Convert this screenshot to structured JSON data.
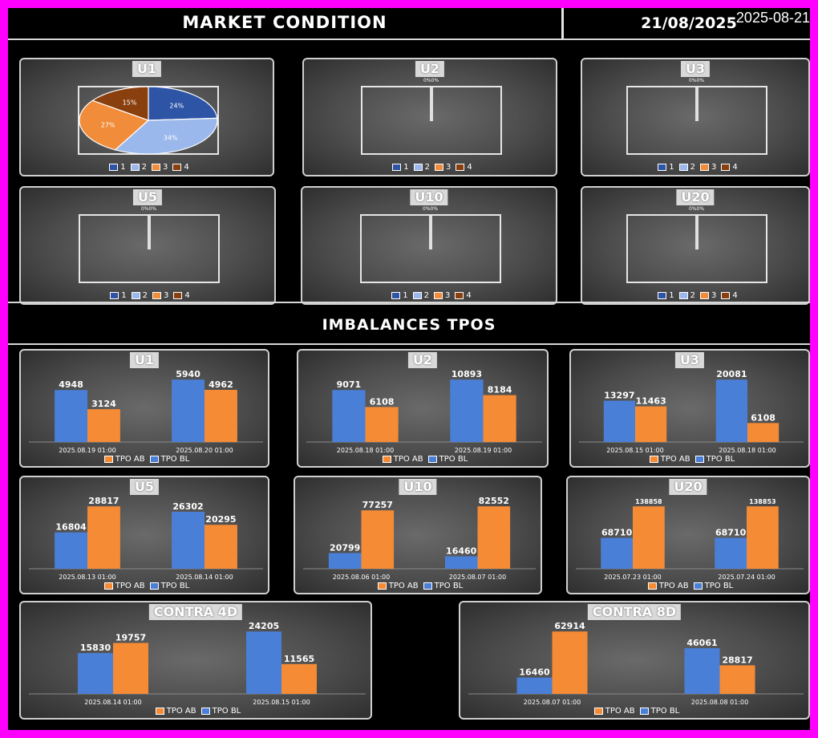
{
  "overlay_date": "2025-08-21",
  "header": {
    "title": "MARKET CONDITION",
    "date": "21/08/2025"
  },
  "imbalance_title": "IMBALANCES TPOS",
  "colors": {
    "q1": "#2e55a5",
    "q2": "#9ab8ec",
    "q3": "#f08c3a",
    "q4": "#8a3f0e",
    "tpo_ab": "#f58b35",
    "tpo_bl": "#4a7fd8"
  },
  "pie_legend": [
    "1",
    "2",
    "3",
    "4"
  ],
  "pies": [
    {
      "label": "U1",
      "values": [
        24,
        34,
        27,
        15
      ],
      "slice_labels": [
        "24%",
        "34%",
        "27%",
        "15%"
      ]
    },
    {
      "label": "U2",
      "mini": "0%0%"
    },
    {
      "label": "U3",
      "mini": "0%0%"
    },
    {
      "label": "U5",
      "mini": "0%0%"
    },
    {
      "label": "U10",
      "mini": "0%0%"
    },
    {
      "label": "U20",
      "mini": "0%0%"
    }
  ],
  "bar_legend": [
    "TPO AB",
    "TPO BL"
  ],
  "chart_data": [
    {
      "type": "bar",
      "title": "U1",
      "categories": [
        "2025.08.19 01:00",
        "2025.08.20 01:00"
      ],
      "series": [
        {
          "name": "TPO BL",
          "values": [
            4948,
            5940
          ]
        },
        {
          "name": "TPO AB",
          "values": [
            3124,
            4962
          ]
        }
      ]
    },
    {
      "type": "bar",
      "title": "U2",
      "categories": [
        "2025.08.18 01:00",
        "2025.08.19 01:00"
      ],
      "series": [
        {
          "name": "TPO BL",
          "values": [
            9071,
            10893
          ]
        },
        {
          "name": "TPO AB",
          "values": [
            6108,
            8184
          ]
        }
      ]
    },
    {
      "type": "bar",
      "title": "U3",
      "categories": [
        "2025.08.15 01:00",
        "2025.08.18 01:00"
      ],
      "series": [
        {
          "name": "TPO BL",
          "values": [
            13297,
            20081
          ]
        },
        {
          "name": "TPO AB",
          "values": [
            11463,
            6108
          ]
        }
      ]
    },
    {
      "type": "bar",
      "title": "U5",
      "categories": [
        "2025.08.13 01:00",
        "2025.08.14 01:00"
      ],
      "series": [
        {
          "name": "TPO BL",
          "values": [
            16804,
            26302
          ]
        },
        {
          "name": "TPO AB",
          "values": [
            28817,
            20295
          ]
        }
      ]
    },
    {
      "type": "bar",
      "title": "U10",
      "categories": [
        "2025.08.06 01:00",
        "2025.08.07 01:00"
      ],
      "series": [
        {
          "name": "TPO BL",
          "values": [
            20799,
            16460
          ]
        },
        {
          "name": "TPO AB",
          "values": [
            77257,
            82552
          ]
        }
      ]
    },
    {
      "type": "bar",
      "title": "U20",
      "categories": [
        "2025.07.23 01:00",
        "2025.07.24 01:00"
      ],
      "series": [
        {
          "name": "TPO BL",
          "values": [
            68710,
            68710
          ]
        },
        {
          "name": "TPO AB",
          "values": [
            138858,
            138853
          ]
        }
      ]
    },
    {
      "type": "bar",
      "title": "CONTRA 4D",
      "categories": [
        "2025.08.14 01:00",
        "2025.08.15 01:00"
      ],
      "series": [
        {
          "name": "TPO BL",
          "values": [
            15830,
            24205
          ]
        },
        {
          "name": "TPO AB",
          "values": [
            19757,
            11565
          ]
        }
      ]
    },
    {
      "type": "bar",
      "title": "CONTRA 8D",
      "categories": [
        "2025.08.07 01:00",
        "2025.08.08 01:00"
      ],
      "series": [
        {
          "name": "TPO BL",
          "values": [
            16460,
            46061
          ]
        },
        {
          "name": "TPO AB",
          "values": [
            62914,
            28817
          ]
        }
      ]
    }
  ]
}
